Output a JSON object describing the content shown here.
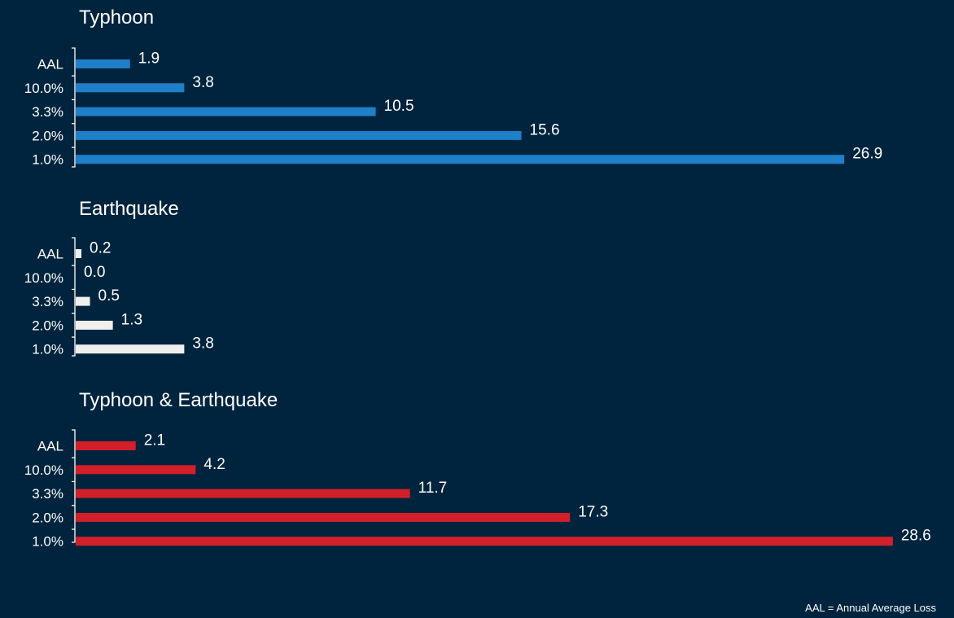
{
  "chart_data": [
    {
      "type": "bar",
      "orientation": "horizontal",
      "title": "Typhoon",
      "categories": [
        "AAL",
        "10.0%",
        "3.3%",
        "2.0%",
        "1.0%"
      ],
      "values": [
        1.9,
        3.8,
        10.5,
        15.6,
        26.9
      ],
      "color": "#1f7fc9"
    },
    {
      "type": "bar",
      "orientation": "horizontal",
      "title": "Earthquake",
      "categories": [
        "AAL",
        "10.0%",
        "3.3%",
        "2.0%",
        "1.0%"
      ],
      "values": [
        0.2,
        0.0,
        0.5,
        1.3,
        3.8
      ],
      "color": "#efefef"
    },
    {
      "type": "bar",
      "orientation": "horizontal",
      "title": "Typhoon & Earthquake",
      "categories": [
        "AAL",
        "10.0%",
        "3.3%",
        "2.0%",
        "1.0%"
      ],
      "values": [
        2.1,
        4.2,
        11.7,
        17.3,
        28.6
      ],
      "color": "#d1202a"
    }
  ],
  "footnote": "AAL = Annual Average Loss",
  "colors": {
    "background": "#00243d",
    "text": "#ffffff"
  }
}
